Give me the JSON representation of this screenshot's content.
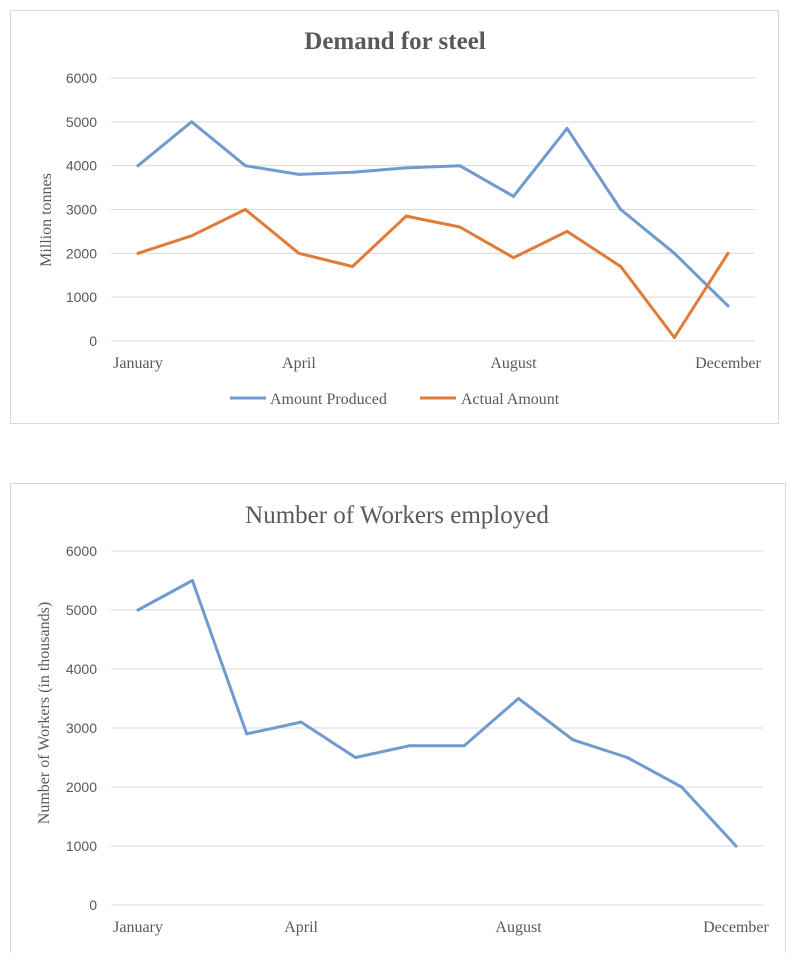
{
  "chart_data": [
    {
      "type": "line",
      "title": "Demand for steel",
      "xlabel": "",
      "ylabel": "Million tonnes",
      "ylim": [
        0,
        6000
      ],
      "yticks": [
        0,
        1000,
        2000,
        3000,
        4000,
        5000,
        6000
      ],
      "categories": [
        "January",
        "",
        "",
        "April",
        "",
        "",
        "",
        "August",
        "",
        "",
        "",
        "December"
      ],
      "grid": true,
      "legend_position": "bottom",
      "series": [
        {
          "name": "Amount Produced",
          "color": "#6f9bd1",
          "values": [
            4000,
            5000,
            4000,
            3800,
            3850,
            3950,
            4000,
            3300,
            4850,
            3000,
            2000,
            800
          ]
        },
        {
          "name": "Actual Amount",
          "color": "#e07b39",
          "values": [
            2000,
            2400,
            3000,
            2000,
            1700,
            2850,
            2600,
            1900,
            2500,
            1700,
            80,
            2000
          ]
        }
      ]
    },
    {
      "type": "line",
      "title": "Number of Workers employed",
      "xlabel": "",
      "ylabel": "Number of Workers (in thousands)",
      "ylim": [
        0,
        6000
      ],
      "yticks": [
        0,
        1000,
        2000,
        3000,
        4000,
        5000,
        6000
      ],
      "categories": [
        "January",
        "",
        "",
        "April",
        "",
        "",
        "",
        "August",
        "",
        "",
        "",
        "December"
      ],
      "grid": true,
      "series": [
        {
          "color": "#6f9bd1",
          "values": [
            5000,
            5500,
            2900,
            3100,
            2500,
            2700,
            2700,
            3500,
            2800,
            2500,
            2000,
            1000
          ]
        }
      ]
    }
  ]
}
